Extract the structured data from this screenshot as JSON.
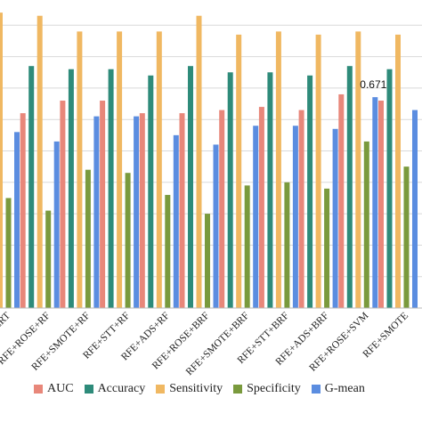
{
  "chart_data": {
    "type": "bar",
    "title": "",
    "xlabel": "",
    "ylabel": "",
    "ylim": [
      0,
      1
    ],
    "grid": true,
    "legend_position": "bottom",
    "categories": [
      "ERT",
      "RFE+ROSE+RF",
      "RFE+SMOTE+RF",
      "RFE+STT+RF",
      "RFE+ADS+RF",
      "RFE+ROSE+BRF",
      "RFE+SMOTE+BRF",
      "RFE+STT+BRF",
      "RFE+ADS+BRF",
      "RFE+ROSE+SVM",
      "RFE+SMOTE"
    ],
    "series": [
      {
        "name": "AUC",
        "color": "#E8877A",
        "values": [
          0.62,
          0.62,
          0.66,
          0.66,
          0.62,
          0.62,
          0.63,
          0.64,
          0.63,
          0.68,
          0.66
        ]
      },
      {
        "name": "Accuracy",
        "color": "#2E8B7A",
        "values": [
          0.79,
          0.77,
          0.76,
          0.76,
          0.74,
          0.77,
          0.75,
          0.75,
          0.74,
          0.77,
          0.76
        ]
      },
      {
        "name": "Sensitivity",
        "color": "#F0B862",
        "values": [
          0.94,
          0.93,
          0.88,
          0.88,
          0.88,
          0.93,
          0.87,
          0.88,
          0.87,
          0.88,
          0.87
        ]
      },
      {
        "name": "Specificity",
        "color": "#7A9A3D",
        "values": [
          0.35,
          0.31,
          0.44,
          0.43,
          0.36,
          0.3,
          0.39,
          0.4,
          0.38,
          0.53,
          0.45
        ]
      },
      {
        "name": "G-mean",
        "color": "#5B8DE0",
        "values": [
          0.56,
          0.53,
          0.61,
          0.61,
          0.55,
          0.52,
          0.58,
          0.58,
          0.57,
          0.671,
          0.63
        ]
      }
    ],
    "annotation": "0.671"
  }
}
